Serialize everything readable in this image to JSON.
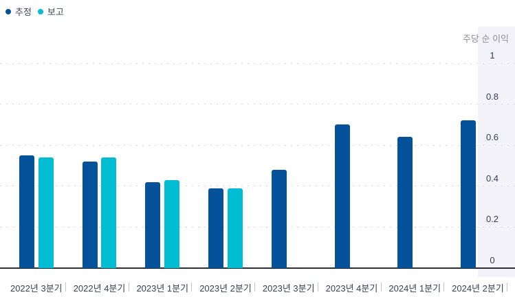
{
  "legend": {
    "items": [
      {
        "key": "estimate",
        "label": "추정",
        "color": "#05519a"
      },
      {
        "key": "reported",
        "label": "보고",
        "color": "#00bdd4"
      }
    ]
  },
  "chart_data": {
    "type": "bar",
    "title": "주당 순 이익",
    "categories": [
      "2022년 3분기",
      "2022년 4분기",
      "2023년 1분기",
      "2023년 2분기",
      "2023년 3분기",
      "2023년 4분기",
      "2024년 1분기",
      "2024년 2분기"
    ],
    "series": [
      {
        "key": "estimate",
        "name": "추정",
        "color": "#05519a",
        "values": [
          0.55,
          0.52,
          0.42,
          0.39,
          0.48,
          0.7,
          0.64,
          0.72
        ]
      },
      {
        "key": "reported",
        "name": "보고",
        "color": "#00bdd4",
        "values": [
          0.54,
          0.54,
          0.43,
          0.39,
          null,
          null,
          null,
          null
        ]
      }
    ],
    "ylim": [
      0,
      1
    ],
    "y_ticks": [
      0,
      0.2,
      0.4,
      0.6,
      0.8,
      1
    ],
    "grid": "dotted-horizontal",
    "legend_position": "top-left",
    "axis_side": "right"
  },
  "colors": {
    "estimate_bar": "#05519a",
    "reported_bar": "#00bdd4",
    "axis_band_background": "#f3f2f9",
    "gridline": "#d8d8d8",
    "axis_line": "#2b2f36",
    "tick_text": "#333d52",
    "axis_title_text": "#8e8e8e"
  }
}
